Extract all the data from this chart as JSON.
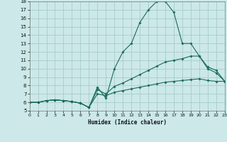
{
  "xlabel": "Humidex (Indice chaleur)",
  "background_color": "#cce8e8",
  "grid_color": "#a8cccc",
  "line_color": "#1a6b5a",
  "xlim": [
    0,
    23
  ],
  "ylim": [
    5,
    18
  ],
  "xticks": [
    0,
    1,
    2,
    3,
    4,
    5,
    6,
    7,
    8,
    9,
    10,
    11,
    12,
    13,
    14,
    15,
    16,
    17,
    18,
    19,
    20,
    21,
    22,
    23
  ],
  "yticks": [
    5,
    6,
    7,
    8,
    9,
    10,
    11,
    12,
    13,
    14,
    15,
    16,
    17,
    18
  ],
  "lines": [
    {
      "x": [
        0,
        1,
        2,
        3,
        4,
        5,
        6,
        7,
        8,
        9,
        10,
        11,
        12,
        13,
        14,
        15,
        16,
        17,
        18,
        19,
        20,
        21,
        22,
        23
      ],
      "y": [
        6,
        6,
        6.2,
        6.3,
        6.2,
        6.1,
        5.9,
        5.4,
        7.8,
        6.5,
        10,
        12,
        13,
        15.5,
        17,
        18,
        18,
        16.7,
        13,
        13,
        11.5,
        10,
        9.5,
        8.5
      ]
    },
    {
      "x": [
        0,
        1,
        2,
        3,
        4,
        5,
        6,
        7,
        8,
        9,
        10,
        11,
        12,
        13,
        14,
        15,
        16,
        17,
        18,
        19,
        20,
        21,
        22,
        23
      ],
      "y": [
        6,
        6,
        6.2,
        6.3,
        6.2,
        6.1,
        5.9,
        5.4,
        7.5,
        7.0,
        7.9,
        8.3,
        8.8,
        9.3,
        9.8,
        10.3,
        10.8,
        11.0,
        11.2,
        11.5,
        11.5,
        10.2,
        9.8,
        8.5
      ]
    },
    {
      "x": [
        0,
        1,
        2,
        3,
        4,
        5,
        6,
        7,
        8,
        9,
        10,
        11,
        12,
        13,
        14,
        15,
        16,
        17,
        18,
        19,
        20,
        21,
        22,
        23
      ],
      "y": [
        6,
        6,
        6.2,
        6.3,
        6.2,
        6.1,
        5.9,
        5.4,
        7.0,
        6.8,
        7.2,
        7.4,
        7.6,
        7.8,
        8.0,
        8.2,
        8.4,
        8.5,
        8.6,
        8.7,
        8.8,
        8.6,
        8.5,
        8.5
      ]
    }
  ]
}
